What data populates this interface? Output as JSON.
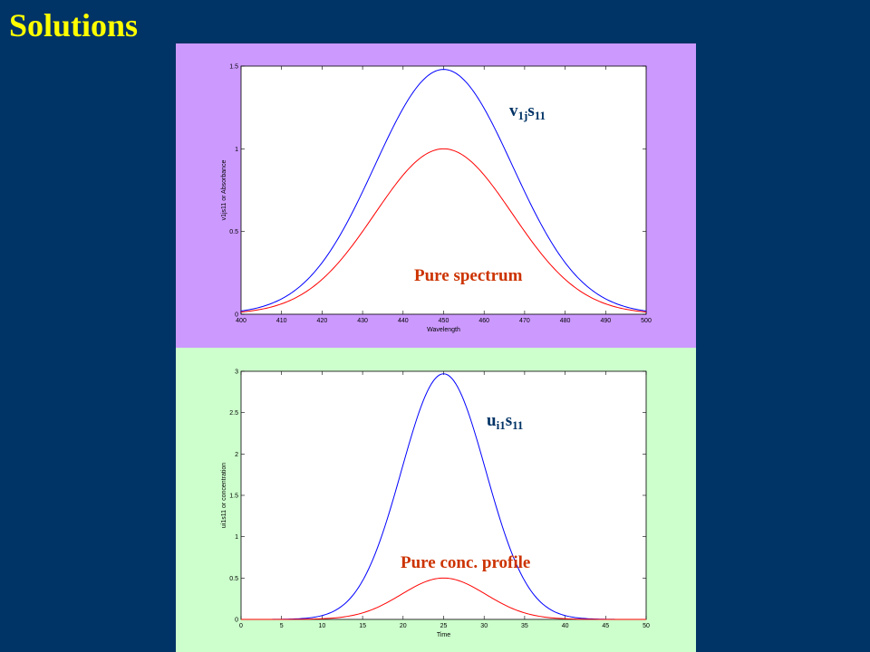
{
  "slide": {
    "title": "Solutions"
  },
  "chart_data": [
    {
      "type": "line",
      "title": "",
      "xlabel": "Wavelength",
      "ylabel": "v1js11 or Absorbance",
      "xlim": [
        400,
        500
      ],
      "ylim": [
        0,
        1.5
      ],
      "xticks": [
        400,
        410,
        420,
        430,
        440,
        450,
        460,
        470,
        480,
        490,
        500
      ],
      "yticks": [
        0,
        0.5,
        1,
        1.5
      ],
      "grid": false,
      "series": [
        {
          "color": "#0000ff",
          "curve": "gaussian",
          "center": 450,
          "peak": 1.48,
          "width": 17
        },
        {
          "color": "#ff0000",
          "curve": "gaussian",
          "center": 450,
          "peak": 1.0,
          "width": 17
        }
      ],
      "annotations": [
        {
          "base": "v",
          "sub": "1j",
          "base2": "s",
          "sub2": "11",
          "color": "#003366"
        },
        {
          "text": "Pure spectrum",
          "color": "#cc3300"
        }
      ]
    },
    {
      "type": "line",
      "title": "",
      "xlabel": "Time",
      "ylabel": "ui1s11 or concentration",
      "xlim": [
        0,
        50
      ],
      "ylim": [
        0,
        3
      ],
      "xticks": [
        0,
        5,
        10,
        15,
        20,
        25,
        30,
        35,
        40,
        45,
        50
      ],
      "yticks": [
        0,
        0.5,
        1,
        1.5,
        2,
        2.5,
        3
      ],
      "grid": false,
      "series": [
        {
          "color": "#0000ff",
          "curve": "gaussian",
          "center": 25,
          "peak": 2.97,
          "width": 5.2
        },
        {
          "color": "#ff0000",
          "curve": "gaussian",
          "center": 25,
          "peak": 0.5,
          "width": 5.2
        }
      ],
      "annotations": [
        {
          "base": "u",
          "sub": "i1",
          "base2": "s",
          "sub2": "11",
          "color": "#003366"
        },
        {
          "text": "Pure conc. profile",
          "color": "#cc3300"
        }
      ]
    }
  ]
}
